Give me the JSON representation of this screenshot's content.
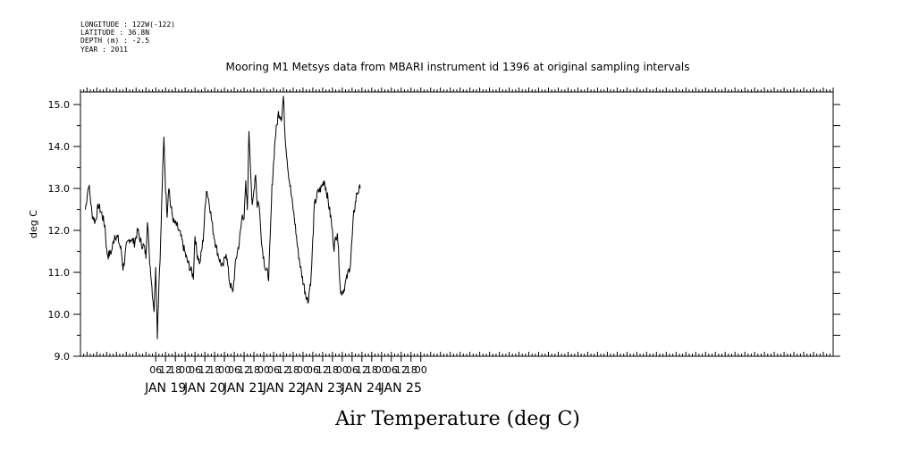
{
  "header_info": {
    "longitude": "LONGITUDE : 122W(-122)",
    "latitude": "LATITUDE : 36.8N",
    "depth": "DEPTH (m) : -2.5",
    "year": "YEAR : 2011"
  },
  "chart_data": {
    "type": "line",
    "title": "Mooring M1 Metsys data from MBARI instrument id 1396 at original sampling intervals",
    "xlabel": "Air Temperature (deg C)",
    "ylabel": "deg C",
    "ylim": [
      9.0,
      15.3
    ],
    "xlim_hours": [
      -40,
      420
    ],
    "y_ticks": [
      "9.0",
      "10.0",
      "11.0",
      "12.0",
      "13.0",
      "14.0",
      "15.0"
    ],
    "x_hour_ticks": [
      "06",
      "12",
      "18",
      "00",
      "06",
      "12",
      "18",
      "00",
      "06",
      "12",
      "18",
      "00",
      "06",
      "12",
      "18",
      "00",
      "06",
      "12",
      "18",
      "00",
      "06",
      "12",
      "18",
      "00",
      "06",
      "12",
      "18",
      "00"
    ],
    "x_day_labels": [
      "JAN 19",
      "JAN 20",
      "JAN 21",
      "JAN 22",
      "JAN 23",
      "JAN 24",
      "JAN 25"
    ],
    "series": [
      {
        "color": "#000000",
        "x": [
          "2011-01-19T00:00",
          "2011-01-19T02:00",
          "2011-01-19T03:00",
          "2011-01-19T04:00",
          "2011-01-19T06:00",
          "2011-01-19T08:00",
          "2011-01-19T10:00",
          "2011-01-19T12:00",
          "2011-01-19T13:00",
          "2011-01-19T14:00",
          "2011-01-19T16:00",
          "2011-01-19T18:00",
          "2011-01-19T20:00",
          "2011-01-19T22:00",
          "2011-01-19T23:00",
          "2011-01-20T00:00",
          "2011-01-20T01:00",
          "2011-01-20T03:00",
          "2011-01-20T04:00",
          "2011-01-20T06:00",
          "2011-01-20T08:00",
          "2011-01-20T10:00",
          "2011-01-20T12:00",
          "2011-01-20T12:30",
          "2011-01-20T13:00",
          "2011-01-20T14:00",
          "2011-01-20T15:00",
          "2011-01-20T16:00",
          "2011-01-20T17:00",
          "2011-01-20T18:00",
          "2011-01-20T19:00",
          "2011-01-20T20:00",
          "2011-01-20T21:00",
          "2011-01-20T22:00",
          "2011-01-20T23:00",
          "2011-01-21T00:00",
          "2011-01-21T01:00",
          "2011-01-21T02:00",
          "2011-01-21T03:00",
          "2011-01-21T04:00",
          "2011-01-21T06:00",
          "2011-01-21T08:00",
          "2011-01-21T10:00",
          "2011-01-21T12:00",
          "2011-01-21T14:00",
          "2011-01-21T16:00",
          "2011-01-21T18:00",
          "2011-01-21T19:00",
          "2011-01-21T20:00",
          "2011-01-21T22:00",
          "2011-01-22T00:00",
          "2011-01-22T02:00",
          "2011-01-22T04:00",
          "2011-01-22T06:00",
          "2011-01-22T08:00",
          "2011-01-22T10:00",
          "2011-01-22T12:00",
          "2011-01-22T14:00",
          "2011-01-22T16:00",
          "2011-01-22T18:00",
          "2011-01-22T20:00",
          "2011-01-22T22:00",
          "2011-01-23T00:00",
          "2011-01-23T01:00",
          "2011-01-23T02:00",
          "2011-01-23T03:00",
          "2011-01-23T04:00",
          "2011-01-23T06:00",
          "2011-01-23T08:00",
          "2011-01-23T09:00",
          "2011-01-23T10:00",
          "2011-01-23T12:00",
          "2011-01-23T14:00",
          "2011-01-23T16:00",
          "2011-01-23T17:00",
          "2011-01-23T18:00",
          "2011-01-23T20:00",
          "2011-01-23T22:00",
          "2011-01-24T00:00",
          "2011-01-24T01:00",
          "2011-01-24T02:00",
          "2011-01-24T04:00",
          "2011-01-24T06:00",
          "2011-01-24T08:00",
          "2011-01-24T10:00",
          "2011-01-24T12:00",
          "2011-01-24T14:00",
          "2011-01-24T16:00",
          "2011-01-24T18:00",
          "2011-01-24T20:00",
          "2011-01-24T22:00",
          "2011-01-25T00:00",
          "2011-01-25T02:00",
          "2011-01-25T04:00",
          "2011-01-25T06:00",
          "2011-01-25T08:00",
          "2011-01-25T10:00",
          "2011-01-25T12:00",
          "2011-01-25T14:00",
          "2011-01-25T16:00",
          "2011-01-25T18:00",
          "2011-01-25T20:00",
          "2011-01-25T22:00",
          "2011-01-26T00:00"
        ],
        "values": [
          12.5,
          13.1,
          12.8,
          12.4,
          12.2,
          12.6,
          12.4,
          12.1,
          11.5,
          11.4,
          11.5,
          11.9,
          11.8,
          11.5,
          11.1,
          11.3,
          11.6,
          11.8,
          11.8,
          11.7,
          12.0,
          11.7,
          11.6,
          11.5,
          11.4,
          12.3,
          11.4,
          11.0,
          10.5,
          10.1,
          11.2,
          9.5,
          10.8,
          11.7,
          13.1,
          14.2,
          13.0,
          12.4,
          13.1,
          12.6,
          12.2,
          12.1,
          11.9,
          11.6,
          11.3,
          11.1,
          10.9,
          11.9,
          11.5,
          11.2,
          11.8,
          13.0,
          12.6,
          12.0,
          11.6,
          11.3,
          11.1,
          11.5,
          10.8,
          10.5,
          11.3,
          11.7,
          12.4,
          12.3,
          13.1,
          12.5,
          14.4,
          12.5,
          13.4,
          12.6,
          12.7,
          11.6,
          11.1,
          10.9,
          11.8,
          13.0,
          14.2,
          14.8,
          14.7,
          15.2,
          14.3,
          13.4,
          12.8,
          12.2,
          11.5,
          11.0,
          10.6,
          10.3,
          10.9,
          12.6,
          12.9,
          13.0,
          13.2,
          12.8,
          12.3,
          11.6,
          12.0,
          10.5,
          10.6,
          10.9,
          11.2,
          12.4,
          12.9,
          13.0
        ]
      }
    ]
  }
}
